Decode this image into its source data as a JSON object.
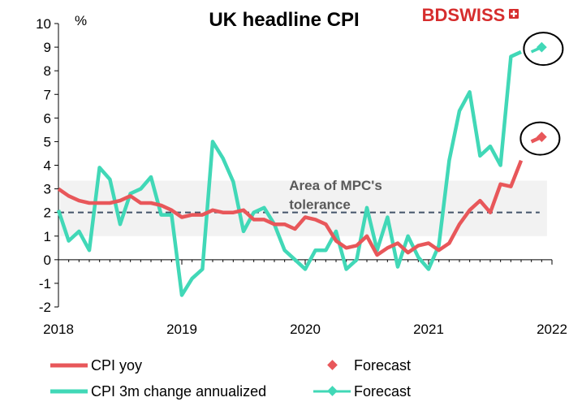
{
  "chart_data": {
    "type": "line",
    "title": "UK headline CPI",
    "ylabel": "%",
    "ylim": [
      -2,
      10
    ],
    "yticks": [
      -2,
      -1,
      0,
      1,
      2,
      3,
      4,
      5,
      6,
      7,
      8,
      9,
      10
    ],
    "xlim": [
      2018,
      2022
    ],
    "xticks": [
      "2018",
      "2019",
      "2020",
      "2021",
      "2022"
    ],
    "tolerance_band": [
      1,
      3.35
    ],
    "target_line": 2,
    "annotation": [
      "Area of MPC's",
      "tolerance"
    ],
    "colors": {
      "cpi_yoy": "#e8575a",
      "cpi_3m": "#41d8b7",
      "band": "#f2f2f2",
      "target": "#44546a"
    },
    "series": [
      {
        "name": "CPI yoy",
        "color": "#e8575a",
        "x": [
          2018.0,
          2018.083,
          2018.167,
          2018.25,
          2018.333,
          2018.417,
          2018.5,
          2018.583,
          2018.667,
          2018.75,
          2018.833,
          2018.917,
          2019.0,
          2019.083,
          2019.167,
          2019.25,
          2019.333,
          2019.417,
          2019.5,
          2019.583,
          2019.667,
          2019.75,
          2019.833,
          2019.917,
          2020.0,
          2020.083,
          2020.167,
          2020.25,
          2020.333,
          2020.417,
          2020.5,
          2020.583,
          2020.667,
          2020.75,
          2020.833,
          2020.917,
          2021.0,
          2021.083,
          2021.167,
          2021.25,
          2021.333,
          2021.417,
          2021.5,
          2021.583,
          2021.667,
          2021.75
        ],
        "values": [
          3.0,
          2.7,
          2.5,
          2.4,
          2.4,
          2.4,
          2.5,
          2.7,
          2.4,
          2.4,
          2.3,
          2.1,
          1.8,
          1.9,
          1.9,
          2.1,
          2.0,
          2.0,
          2.1,
          1.7,
          1.7,
          1.5,
          1.5,
          1.3,
          1.8,
          1.7,
          1.5,
          0.8,
          0.5,
          0.6,
          1.0,
          0.2,
          0.5,
          0.7,
          0.3,
          0.6,
          0.7,
          0.4,
          0.7,
          1.5,
          2.1,
          2.5,
          2.0,
          3.2,
          3.1,
          4.2
        ]
      },
      {
        "name": "Forecast",
        "color": "#e8575a",
        "x": [
          2021.833,
          2021.917
        ],
        "values": [
          5.0,
          5.2
        ]
      },
      {
        "name": "CPI 3m change annualized",
        "color": "#41d8b7",
        "x": [
          2018.0,
          2018.083,
          2018.167,
          2018.25,
          2018.333,
          2018.417,
          2018.5,
          2018.583,
          2018.667,
          2018.75,
          2018.833,
          2018.917,
          2019.0,
          2019.083,
          2019.167,
          2019.25,
          2019.333,
          2019.417,
          2019.5,
          2019.583,
          2019.667,
          2019.75,
          2019.833,
          2019.917,
          2020.0,
          2020.083,
          2020.167,
          2020.25,
          2020.333,
          2020.417,
          2020.5,
          2020.583,
          2020.667,
          2020.75,
          2020.833,
          2020.917,
          2021.0,
          2021.083,
          2021.167,
          2021.25,
          2021.333,
          2021.417,
          2021.5,
          2021.583,
          2021.667,
          2021.75
        ],
        "values": [
          2.1,
          0.8,
          1.2,
          0.4,
          3.9,
          3.4,
          1.5,
          2.8,
          3.0,
          3.5,
          1.9,
          1.9,
          -1.5,
          -0.8,
          -0.4,
          5.0,
          4.3,
          3.3,
          1.2,
          2.0,
          2.2,
          1.5,
          0.4,
          0.0,
          -0.4,
          0.4,
          0.4,
          1.2,
          -0.4,
          0.0,
          2.2,
          0.4,
          1.8,
          -0.3,
          1.0,
          0.1,
          -0.4,
          0.6,
          4.2,
          6.3,
          7.1,
          4.4,
          4.8,
          4.0,
          8.6,
          8.8
        ]
      },
      {
        "name": "Forecast",
        "color": "#41d8b7",
        "x": [
          2021.833,
          2021.917
        ],
        "values": [
          8.8,
          9.0
        ]
      }
    ],
    "legend": [
      {
        "label": "CPI yoy",
        "kind": "line",
        "color": "#e8575a"
      },
      {
        "label": "Forecast",
        "kind": "marker",
        "color": "#e8575a"
      },
      {
        "label": "CPI 3m change annualized",
        "kind": "line",
        "color": "#41d8b7"
      },
      {
        "label": "Forecast",
        "kind": "line-marker",
        "color": "#41d8b7"
      }
    ],
    "legend_position": "bottom",
    "grid": false
  },
  "logo": {
    "text": "BDSWISS",
    "color": "#d62d2d",
    "icon": "swiss-cross-icon"
  }
}
